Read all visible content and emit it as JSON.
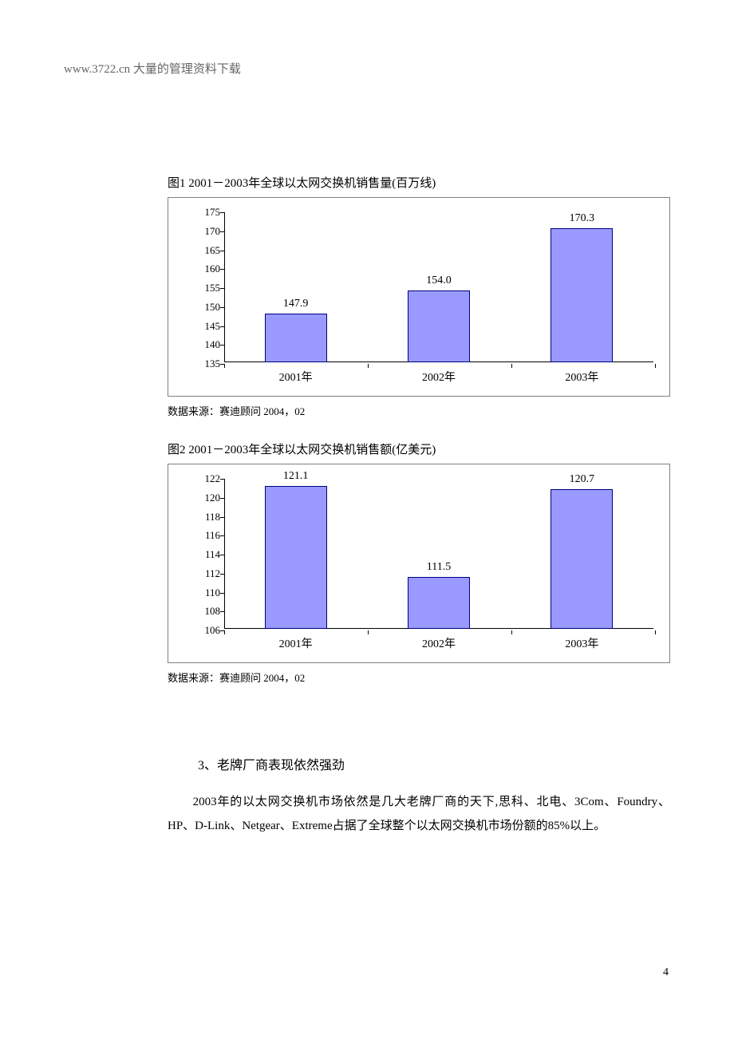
{
  "header": {
    "text": "www.3722.cn 大量的管理资料下载"
  },
  "chart1": {
    "type": "bar",
    "title": "图1   2001－2003年全球以太网交换机销售量(百万线)",
    "categories": [
      "2001年",
      "2002年",
      "2003年"
    ],
    "values": [
      147.9,
      154.0,
      170.3
    ],
    "value_labels": [
      "147.9",
      "154.0",
      "170.3"
    ],
    "ylim_min": 135,
    "ylim_max": 175,
    "ytick_step": 5,
    "yticks": [
      135,
      140,
      145,
      150,
      155,
      160,
      165,
      170,
      175
    ],
    "bar_color": "#9999ff",
    "bar_border": "#000080",
    "background_color": "#ffffff",
    "axis_color": "#000000",
    "label_fontsize": 13,
    "value_fontsize": 14,
    "source": "数据来源：赛迪顾问   2004，02"
  },
  "chart2": {
    "type": "bar",
    "title": "图2   2001－2003年全球以太网交换机销售额(亿美元)",
    "categories": [
      "2001年",
      "2002年",
      "2003年"
    ],
    "values": [
      121.1,
      111.5,
      120.7
    ],
    "value_labels": [
      "121.1",
      "111.5",
      "120.7"
    ],
    "ylim_min": 106,
    "ylim_max": 122,
    "ytick_step": 2,
    "yticks": [
      106,
      108,
      110,
      112,
      114,
      116,
      118,
      120,
      122
    ],
    "bar_color": "#9999ff",
    "bar_border": "#000080",
    "background_color": "#ffffff",
    "axis_color": "#000000",
    "label_fontsize": 13,
    "value_fontsize": 14,
    "source": "数据来源：赛迪顾问   2004，02"
  },
  "section": {
    "heading": "3、老牌厂商表现依然强劲",
    "paragraph": "　　2003年的以太网交换机市场依然是几大老牌厂商的天下,思科、北电、3Com、Foundry、HP、D-Link、Netgear、Extreme占据了全球整个以太网交换机市场份额的85%以上。"
  },
  "page_number": "4"
}
